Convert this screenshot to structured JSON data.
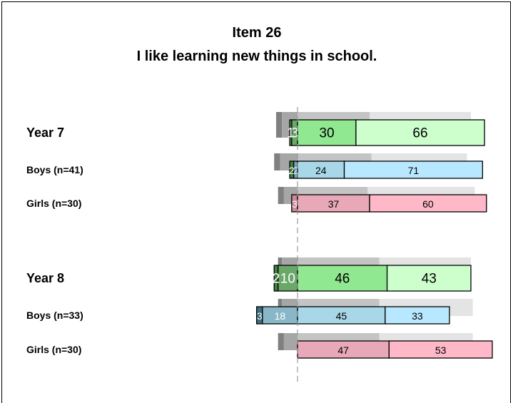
{
  "chart_data": {
    "type": "diverging_bar",
    "title": "Item 26",
    "subtitle": "I like learning new things in school.",
    "categories": [
      "Year 7",
      "Boys (n=41)",
      "Girls (n=30)",
      "Year 8",
      "Boys (n=33)",
      "Girls (n=30)"
    ],
    "series": [
      {
        "colors": [
          "#4f8f4f",
          "#3f7f3f",
          "#4f8f4f",
          "#3f7f3f",
          "#3f6f7f",
          "#9f6f7f"
        ],
        "values": [
          1,
          2,
          null,
          2,
          3,
          null
        ]
      },
      {
        "colors": [
          "#6aa86a",
          "#6fa7b7",
          "#d08898",
          "#6aa86a",
          "#88b8c8",
          "#d08898"
        ],
        "values": [
          3,
          2,
          3,
          10,
          18,
          null
        ]
      },
      {
        "colors": [
          "#90e890",
          "#a8d8e8",
          "#e8a8b8",
          "#90e890",
          "#a8d8e8",
          "#e8a8b8"
        ],
        "values": [
          30,
          24,
          37,
          46,
          45,
          47
        ]
      },
      {
        "colors": [
          "#ccffcc",
          "#b8e8ff",
          "#ffb8c8",
          "#ccffcc",
          "#b8e8ff",
          "#ffb8c8"
        ],
        "values": [
          66,
          71,
          60,
          43,
          33,
          53
        ]
      }
    ],
    "comparison": {
      "colors": [
        "#808080",
        "#a6a6a6",
        "#c4c4c4",
        "#e4e4e4"
      ],
      "values": [
        [
          3,
          8,
          37,
          52
        ],
        [
          3,
          9,
          38,
          49
        ],
        [
          3,
          7,
          36,
          55
        ],
        [
          2,
          8,
          42,
          47
        ],
        [
          2,
          8,
          42,
          48
        ],
        [
          3,
          7,
          42,
          48
        ]
      ]
    }
  }
}
